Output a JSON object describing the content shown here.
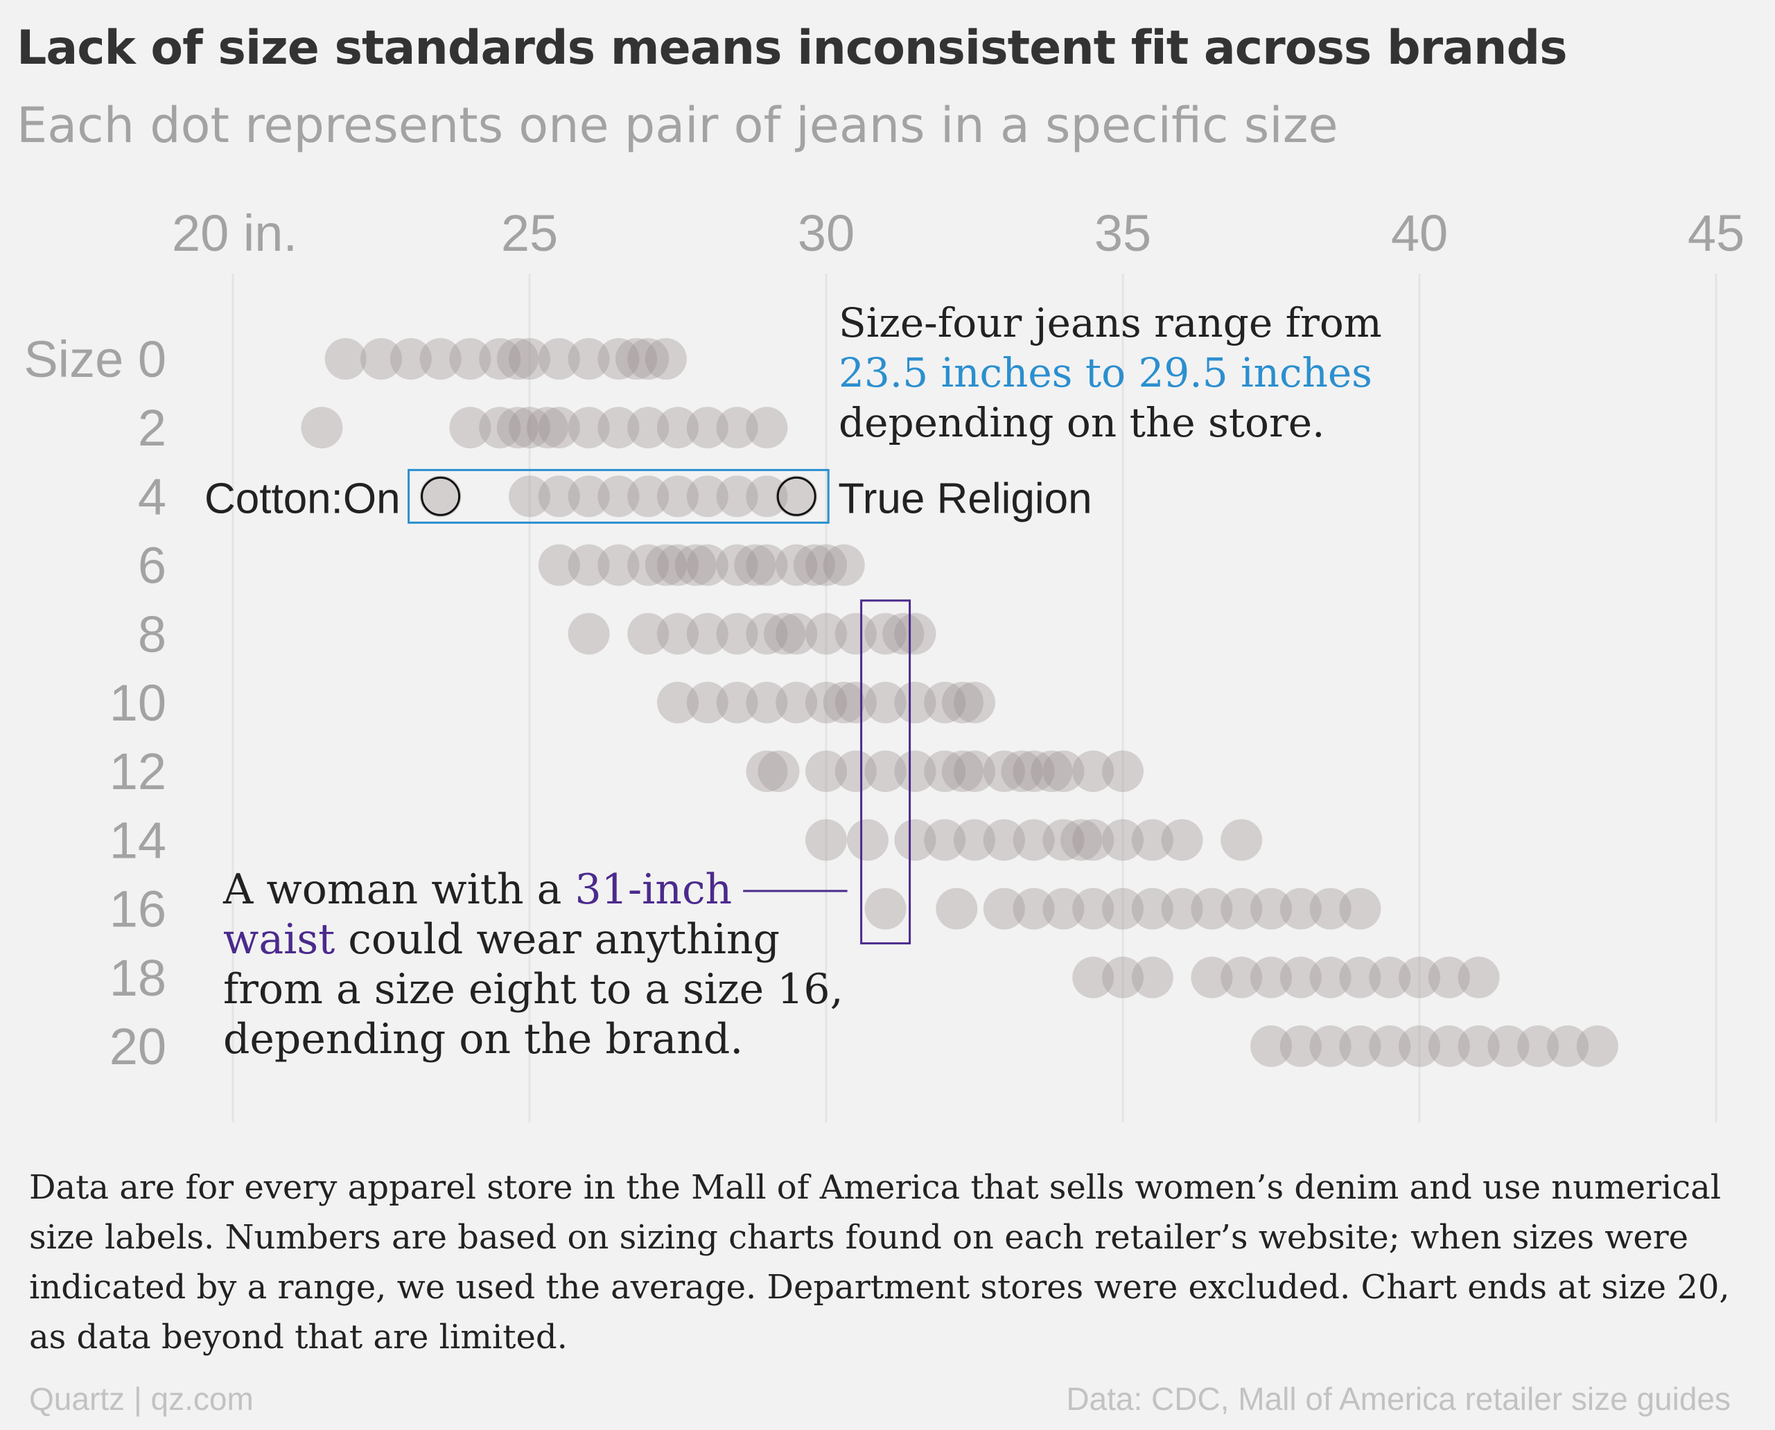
{
  "title": "Lack of size standards means inconsistent fit across brands",
  "subtitle": "Each dot represents one pair of jeans in a specific size",
  "chart_data": {
    "type": "scatter",
    "title": "Lack of size standards means inconsistent fit across brands",
    "subtitle": "Each dot represents one pair of jeans in a specific size",
    "x_tick_labels": [
      "20 in.",
      "25",
      "30",
      "35",
      "40",
      "45"
    ],
    "x_ticks": [
      20,
      25,
      30,
      35,
      40,
      45
    ],
    "xlim": [
      20,
      45
    ],
    "grid": true,
    "y_categories": [
      "Size 0",
      "2",
      "4",
      "6",
      "8",
      "10",
      "12",
      "14",
      "16",
      "18",
      "20"
    ],
    "colors": {
      "dot": "#9c8f8f",
      "highlight_blue": "#2b8fcf",
      "highlight_purple": "#4b2a8c",
      "text_gray": "#a3a3a3"
    },
    "series": [
      {
        "size": "0",
        "waist_inches": [
          21.9,
          22.5,
          23.0,
          23.5,
          24.0,
          24.5,
          24.8,
          25.0,
          25.5,
          26.0,
          26.5,
          26.8,
          27.0,
          27.3
        ]
      },
      {
        "size": "2",
        "waist_inches": [
          21.5,
          24.0,
          24.5,
          24.8,
          25.0,
          25.3,
          25.5,
          26.0,
          26.5,
          27.0,
          27.5,
          28.0,
          28.5,
          29.0
        ]
      },
      {
        "size": "4",
        "waist_inches": [
          23.5,
          25.0,
          25.5,
          26.0,
          26.5,
          27.0,
          27.5,
          28.0,
          28.5,
          29.0,
          29.5
        ]
      },
      {
        "size": "6",
        "waist_inches": [
          25.5,
          26.0,
          26.5,
          27.0,
          27.3,
          27.5,
          27.8,
          28.0,
          28.5,
          28.8,
          29.0,
          29.5,
          29.8,
          30.0,
          30.3
        ]
      },
      {
        "size": "8",
        "waist_inches": [
          26.0,
          27.0,
          27.5,
          28.0,
          28.5,
          29.0,
          29.3,
          29.5,
          30.0,
          30.5,
          31.0,
          31.3,
          31.5
        ]
      },
      {
        "size": "10",
        "waist_inches": [
          27.5,
          28.0,
          28.5,
          29.0,
          29.5,
          30.0,
          30.3,
          30.5,
          31.0,
          31.5,
          32.0,
          32.3,
          32.5
        ]
      },
      {
        "size": "12",
        "waist_inches": [
          29.0,
          29.2,
          30.0,
          30.5,
          31.0,
          31.5,
          32.0,
          32.3,
          32.5,
          33.0,
          33.3,
          33.5,
          33.8,
          34.0,
          34.5,
          35.0
        ]
      },
      {
        "size": "14",
        "waist_inches": [
          30.0,
          30.7,
          31.5,
          32.0,
          32.5,
          33.0,
          33.5,
          34.0,
          34.3,
          34.5,
          35.0,
          35.5,
          36.0,
          37.0
        ]
      },
      {
        "size": "16",
        "waist_inches": [
          31.0,
          32.2,
          33.0,
          33.5,
          34.0,
          34.5,
          35.0,
          35.5,
          36.0,
          36.5,
          37.0,
          37.5,
          38.0,
          38.5,
          39.0
        ]
      },
      {
        "size": "18",
        "waist_inches": [
          34.5,
          35.0,
          35.5,
          36.5,
          37.0,
          37.5,
          38.0,
          38.5,
          39.0,
          39.5,
          40.0,
          40.5,
          41.0
        ]
      },
      {
        "size": "20",
        "waist_inches": [
          37.5,
          38.0,
          38.5,
          39.0,
          39.5,
          40.0,
          40.5,
          41.0,
          41.5,
          42.0,
          42.5,
          43.0
        ]
      }
    ],
    "highlighted_points": [
      {
        "label": "Cotton:On",
        "size": "4",
        "waist_inches": 23.5
      },
      {
        "label": "True Religion",
        "size": "4",
        "waist_inches": 29.5
      }
    ],
    "annotations": {
      "size_four": {
        "line1": "Size-four jeans range from",
        "highlight": "23.5 inches to 29.5 inches",
        "line3": "depending on the store.",
        "x_range": [
          23.5,
          29.5
        ],
        "size": "4"
      },
      "waist_31": {
        "prefix": "A woman with a",
        "highlight1": "31-inch",
        "highlight2": "waist",
        "rest1": " could wear anything",
        "line3": "from a size eight to a size 16,",
        "line4": "depending on the brand.",
        "x": 31,
        "size_range": [
          "8",
          "16"
        ]
      }
    }
  },
  "footnote": "Data are for every apparel store in the Mall of America that sells women’s denim and use numerical size labels. Numbers are based on sizing charts found on each retailer’s website; when sizes were indicated by a range, we used the average. Department stores were excluded. Chart ends at size 20, as data beyond that are limited.",
  "credit": "Quartz | qz.com",
  "source": "Data: CDC, Mall of America retailer size guides"
}
